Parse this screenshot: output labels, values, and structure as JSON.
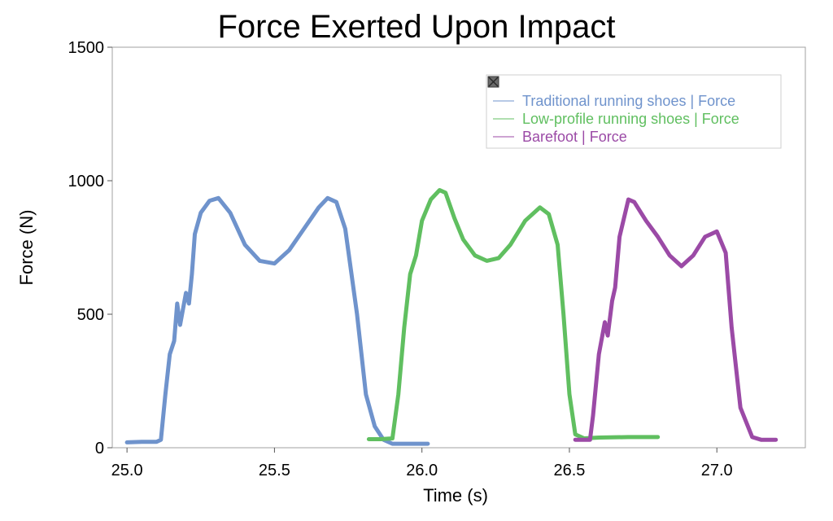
{
  "chart_data": {
    "type": "line",
    "title": "Force Exerted Upon Impact",
    "xlabel": "Time (s)",
    "ylabel": "Force  (N)",
    "xlim": [
      24.95,
      27.3
    ],
    "ylim": [
      0,
      1500
    ],
    "x_ticks": [
      "25.0",
      "25.5",
      "26.0",
      "26.5",
      "27.0"
    ],
    "x_tick_values": [
      25.0,
      25.5,
      26.0,
      26.5,
      27.0
    ],
    "y_ticks": [
      "0",
      "500",
      "1000",
      "1500"
    ],
    "y_tick_values": [
      0,
      500,
      1000,
      1500
    ],
    "grid": false,
    "legend_position": "top-right",
    "series": [
      {
        "name": "Traditional running shoes | Force",
        "color": "#6f93cc",
        "x": [
          25.0,
          25.05,
          25.1,
          25.115,
          25.13,
          25.145,
          25.16,
          25.17,
          25.18,
          25.2,
          25.21,
          25.22,
          25.23,
          25.25,
          25.28,
          25.31,
          25.35,
          25.4,
          25.45,
          25.5,
          25.55,
          25.6,
          25.65,
          25.68,
          25.71,
          25.74,
          25.78,
          25.81,
          25.84,
          25.87,
          25.9,
          25.95,
          26.02
        ],
        "y": [
          20,
          22,
          22,
          30,
          200,
          350,
          400,
          540,
          460,
          580,
          540,
          650,
          800,
          880,
          925,
          935,
          880,
          760,
          700,
          690,
          740,
          820,
          900,
          935,
          920,
          820,
          500,
          200,
          80,
          30,
          15,
          15,
          15
        ]
      },
      {
        "name": "Low-profile running shoes | Force",
        "color": "#60bf60",
        "x": [
          25.82,
          25.86,
          25.9,
          25.92,
          25.94,
          25.96,
          25.98,
          26.0,
          26.03,
          26.06,
          26.08,
          26.11,
          26.14,
          26.18,
          26.22,
          26.26,
          26.3,
          26.35,
          26.4,
          26.43,
          26.46,
          26.48,
          26.5,
          26.52,
          26.55,
          26.6,
          26.7,
          26.8
        ],
        "y": [
          32,
          32,
          35,
          200,
          450,
          650,
          720,
          850,
          930,
          965,
          955,
          860,
          780,
          720,
          700,
          710,
          760,
          850,
          900,
          875,
          760,
          500,
          200,
          50,
          35,
          38,
          40,
          40
        ]
      },
      {
        "name": "Barefoot | Force",
        "color": "#9b4aa6",
        "x": [
          26.52,
          26.57,
          26.58,
          26.6,
          26.62,
          26.63,
          26.645,
          26.655,
          26.67,
          26.7,
          26.72,
          26.76,
          26.8,
          26.84,
          26.88,
          26.92,
          26.96,
          27.0,
          27.03,
          27.05,
          27.08,
          27.12,
          27.15,
          27.2
        ],
        "y": [
          30,
          30,
          120,
          350,
          470,
          420,
          550,
          600,
          790,
          930,
          920,
          850,
          790,
          720,
          680,
          720,
          790,
          810,
          730,
          450,
          150,
          40,
          30,
          30
        ]
      }
    ]
  }
}
